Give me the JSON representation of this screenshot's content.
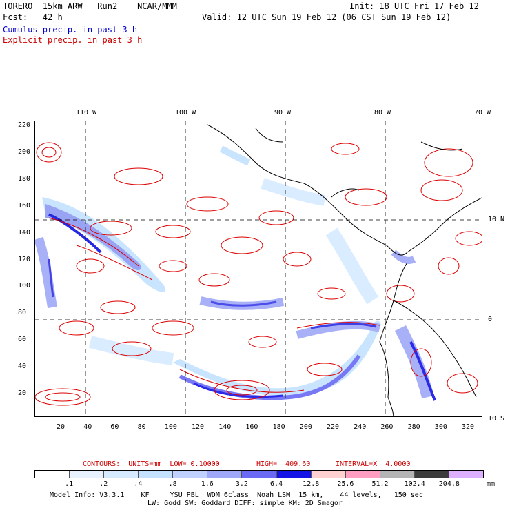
{
  "header": {
    "line1_left": "TORERO  15km ARW   Run2    NCAR/MMM",
    "line1_right": "Init: 18 UTC Fri 17 Feb 12",
    "line2_left": "Fcst:   42 h",
    "line2_right": "Valid: 12 UTC Sun 19 Feb 12 (06 CST Sun 19 Feb 12)",
    "cumulus_label": "Cumulus precip. in past 3 h",
    "explicit_label": "Explicit precip. in past 3 h"
  },
  "map": {
    "top_lon_labels": [
      "110 W",
      "100 W",
      "90 W",
      "80 W",
      "70 W"
    ],
    "right_lat_labels": [
      "10 N",
      "0",
      "10 S"
    ],
    "y_ticks": [
      "220",
      "200",
      "180",
      "160",
      "140",
      "120",
      "100",
      "80",
      "60",
      "40",
      "20"
    ],
    "x_ticks": [
      "20",
      "40",
      "60",
      "80",
      "100",
      "120",
      "140",
      "160",
      "180",
      "200",
      "220",
      "240",
      "260",
      "280",
      "300",
      "320"
    ],
    "colors": {
      "cumulus": "#0000dd",
      "explicit": "#dd0000",
      "grid": "#000000"
    }
  },
  "contours_info": {
    "contours": "CONTOURS:  UNITS=mm  LOW= 0.10000",
    "high": "HIGH=  409.60",
    "interval": "INTERVAL=X  4.0000"
  },
  "colorbar": {
    "labels": [
      ".1",
      ".2",
      ".4",
      ".8",
      "1.6",
      "3.2",
      "6.4",
      "12.8",
      "25.6",
      "51.2",
      "102.4",
      "204.8"
    ],
    "unit": "mm",
    "colors": [
      "#ffffff",
      "#e8f2ff",
      "#d6eaff",
      "#c4e2ff",
      "#c0d0ff",
      "#9fa8f8",
      "#6a6af5",
      "#1414e6",
      "#ffd0d0",
      "#ff9ec0",
      "#b4b4b4",
      "#3c3c3c",
      "#ddb0ff"
    ]
  },
  "footer": {
    "line1": "Model Info: V3.3.1    KF     YSU PBL  WDM 6class  Noah LSM  15 km,    44 levels,   150 sec",
    "line2": "LW: Godd SW: Goddard DIFF: simple KM: 2D Smagor"
  }
}
